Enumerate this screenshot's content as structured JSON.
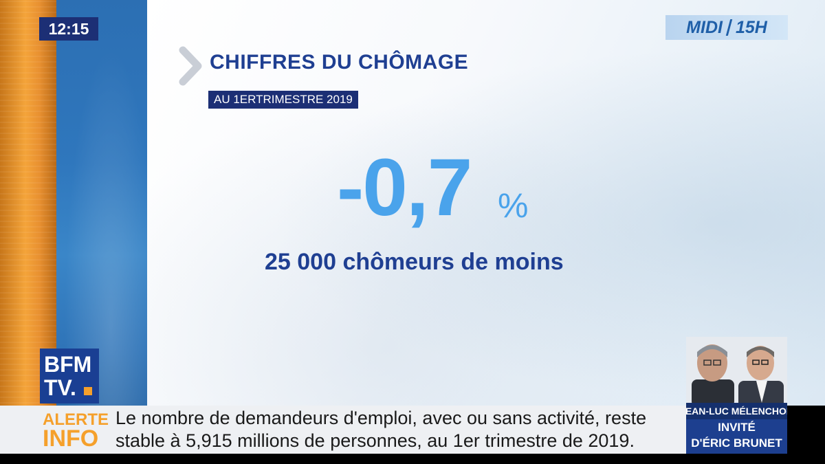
{
  "clock": {
    "time": "12:15"
  },
  "show": {
    "part1": "MIDI",
    "part2": "15H"
  },
  "headline": {
    "title": "CHIFFRES DU CHÔMAGE",
    "subtitle": "AU 1ERTRIMESTRE 2019"
  },
  "stat": {
    "value": "-0,7",
    "unit": "%",
    "caption": "25 000 chômeurs de moins"
  },
  "channel": {
    "line1": "BFM",
    "line2": "TV."
  },
  "ticker": {
    "label_line1": "ALERTE",
    "label_line2": "INFO",
    "text_line1": "Le nombre de demandeurs d'emploi, avec ou sans activité, reste",
    "text_line2": "stable à 5,915 millions de personnes, au 1er trimestre de 2019."
  },
  "guest": {
    "name": "JEAN-LUC MÉLENCHON",
    "role_line1": "INVITÉ",
    "role_line2": "D'ÉRIC BRUNET"
  },
  "colors": {
    "navy": "#1c2f75",
    "title_blue": "#1f3f92",
    "stat_blue": "#4aa3eb",
    "alert_orange": "#f5a02b"
  }
}
